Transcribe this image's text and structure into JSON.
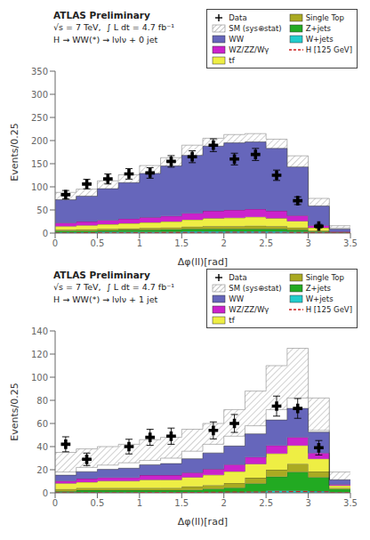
{
  "chart_data": [
    {
      "type": "bar",
      "stacked": true,
      "annotations": [
        "ATLAS Preliminary",
        "√s = 7 TeV,  ∫ L dt = 4.7 fb⁻¹",
        "H → WW(*) → lνlν + 0 jet"
      ],
      "xlabel": "Δφ(ll)[rad]",
      "ylabel": "Events/0.25",
      "bins": [
        0,
        0.25,
        0.5,
        0.75,
        1.0,
        1.25,
        1.5,
        1.75,
        2.0,
        2.25,
        2.5,
        2.75,
        3.0,
        3.25,
        3.5
      ],
      "xlim": [
        0,
        3.5
      ],
      "xticks": [
        0,
        0.5,
        1,
        1.5,
        2,
        2.5,
        3,
        3.5
      ],
      "ylim": [
        0,
        350
      ],
      "yticks": [
        0,
        50,
        100,
        150,
        200,
        250,
        300,
        350
      ],
      "legend": "upper right",
      "grid": false,
      "series": [
        {
          "name": "Data",
          "type": "scatter",
          "marker": "plus",
          "color": "#000000",
          "x": [
            0.125,
            0.375,
            0.625,
            0.875,
            1.125,
            1.375,
            1.625,
            1.875,
            2.125,
            2.375,
            2.625,
            2.875,
            3.125
          ],
          "values": [
            83,
            106,
            117,
            128,
            130,
            155,
            165,
            190,
            160,
            170,
            125,
            70,
            15
          ],
          "errors": [
            9.11,
            10.296,
            10.817,
            11.314,
            11.402,
            12.45,
            12.845,
            13.784,
            12.649,
            13.038,
            11.18,
            8.367,
            3.873
          ]
        },
        {
          "name": "SM (sys⊕stat)",
          "type": "band",
          "color": "#888888",
          "low": [
            70,
            78,
            90,
            100,
            114,
            130,
            148,
            162,
            170,
            172,
            163,
            133,
            56,
            11
          ],
          "high": [
            88,
            95,
            113,
            126,
            146,
            163,
            190,
            205,
            213,
            215,
            203,
            167,
            75,
            16
          ]
        },
        {
          "name": "WW",
          "type": "bar",
          "color": "#6666bb",
          "values": [
            50,
            55,
            68,
            78,
            95,
            108,
            125,
            140,
            145,
            145,
            135,
            105,
            42,
            5
          ]
        },
        {
          "name": "WZ/ZZ/Wγ",
          "type": "bar",
          "color": "#cc22cc",
          "values": [
            7,
            8,
            9,
            10,
            11,
            12,
            14,
            16,
            17,
            17,
            16,
            12,
            5,
            1
          ]
        },
        {
          "name": "tf",
          "type": "bar",
          "color": "#eeee44",
          "values": [
            8,
            9,
            10,
            11,
            12,
            13,
            15,
            17,
            18,
            19,
            17,
            14,
            6,
            1
          ]
        },
        {
          "name": "Single Top",
          "type": "bar",
          "color": "#aaaa22",
          "values": [
            2,
            3,
            3,
            3,
            4,
            4,
            5,
            6,
            6,
            7,
            6,
            5,
            2,
            0.5
          ]
        },
        {
          "name": "Z+jets",
          "type": "bar",
          "color": "#22aa22",
          "values": [
            3,
            3,
            3,
            4,
            4,
            5,
            5,
            5,
            5,
            5,
            5,
            4,
            2,
            0.5
          ]
        },
        {
          "name": "W+jets",
          "type": "bar",
          "color": "#22cccc",
          "values": [
            2,
            2,
            3,
            3,
            3,
            3,
            4,
            4,
            4,
            4,
            4,
            3,
            1.5,
            0.5
          ]
        },
        {
          "name": "H [125 GeV]",
          "type": "step",
          "line_style": "dashed",
          "color": "#cc2222",
          "values": [
            0.5,
            0.6,
            0.7,
            0.8,
            1.0,
            1.1,
            1.3,
            1.4,
            1.5,
            1.5,
            1.4,
            1.1,
            0.6,
            0.1
          ]
        }
      ]
    },
    {
      "type": "bar",
      "stacked": true,
      "annotations": [
        "ATLAS Preliminary",
        "√s = 7 TeV,  ∫ L dt = 4.7 fb⁻¹",
        "H → WW(*) → lνlν + 1 jet"
      ],
      "xlabel": "Δφ(ll)[rad]",
      "ylabel": "Events/0.25",
      "bins": [
        0,
        0.25,
        0.5,
        0.75,
        1.0,
        1.25,
        1.5,
        1.75,
        2.0,
        2.25,
        2.5,
        2.75,
        3.0,
        3.25,
        3.5
      ],
      "xlim": [
        0,
        3.5
      ],
      "xticks": [
        0,
        0.5,
        1,
        1.5,
        2,
        2.5,
        3,
        3.5
      ],
      "ylim": [
        0,
        140
      ],
      "yticks": [
        0,
        20,
        40,
        60,
        80,
        100,
        120,
        140
      ],
      "legend": "upper right",
      "grid": false,
      "series": [
        {
          "name": "Data",
          "type": "scatter",
          "marker": "plus",
          "color": "#000000",
          "x": [
            0.125,
            0.375,
            0.875,
            1.125,
            1.375,
            1.875,
            2.125,
            2.625,
            2.875,
            3.125
          ],
          "values": [
            42,
            29,
            40,
            48,
            49,
            54,
            60,
            75,
            73,
            39
          ],
          "errors": [
            6.481,
            5.385,
            6.325,
            6.928,
            7,
            7.348,
            7.746,
            8.66,
            8.544,
            6.245
          ]
        },
        {
          "name": "SM (sys⊕stat)",
          "type": "band",
          "color": "#888888",
          "low": [
            18,
            22,
            24,
            26,
            28,
            30,
            36,
            42,
            49,
            58,
            72,
            82,
            54,
            10
          ],
          "high": [
            35,
            38,
            40,
            42,
            46,
            48,
            55,
            60,
            72,
            88,
            110,
            125,
            82,
            18
          ]
        },
        {
          "name": "WW",
          "type": "bar",
          "color": "#6666bb",
          "values": [
            5,
            6,
            7,
            8,
            9,
            10,
            12,
            14,
            16,
            20,
            22,
            25,
            18,
            4
          ]
        },
        {
          "name": "WZ/ZZ/Wγ",
          "type": "bar",
          "color": "#cc22cc",
          "values": [
            2,
            3,
            3,
            3,
            4,
            4,
            4,
            5,
            6,
            6,
            7,
            7,
            5,
            1
          ]
        },
        {
          "name": "tf",
          "type": "bar",
          "color": "#eeee44",
          "values": [
            5,
            5,
            6,
            6,
            7,
            7,
            8,
            9,
            10,
            12,
            14,
            16,
            11,
            2
          ]
        },
        {
          "name": "Single Top",
          "type": "bar",
          "color": "#aaaa22",
          "values": [
            2,
            2,
            2,
            2,
            2,
            2,
            3,
            3,
            4,
            5,
            6,
            7,
            5,
            1
          ]
        },
        {
          "name": "Z+jets",
          "type": "bar",
          "color": "#22aa22",
          "values": [
            1,
            2,
            2,
            2,
            2,
            2,
            2,
            3,
            4,
            7,
            12,
            16,
            12,
            3
          ]
        },
        {
          "name": "W+jets",
          "type": "bar",
          "color": "#22cccc",
          "values": [
            0.3,
            0.3,
            0.3,
            0.3,
            0.3,
            0.3,
            0.5,
            0.5,
            0.5,
            1,
            2,
            2,
            1.5,
            0.3
          ]
        },
        {
          "name": "H [125 GeV]",
          "type": "step",
          "line_style": "dashed",
          "color": "#cc2222",
          "values": [
            0.1,
            0.15,
            0.2,
            0.2,
            0.25,
            0.3,
            0.4,
            0.5,
            0.6,
            0.7,
            0.9,
            1.1,
            0.9,
            0.2
          ]
        }
      ]
    }
  ]
}
